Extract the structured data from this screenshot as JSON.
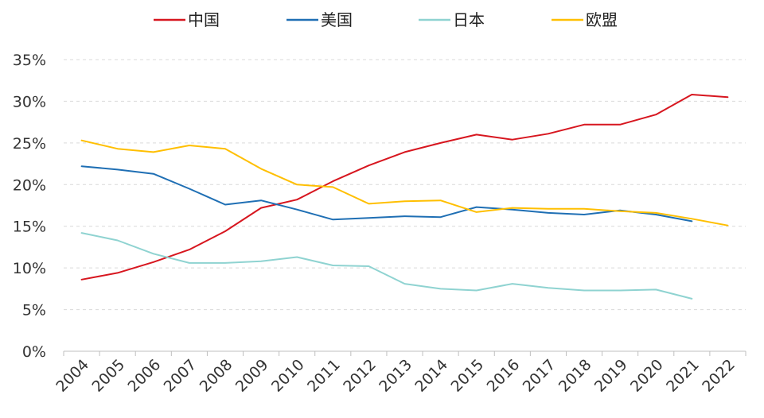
{
  "chart_data": {
    "type": "line",
    "x": [
      "2004",
      "2005",
      "2006",
      "2007",
      "2008",
      "2009",
      "2010",
      "2011",
      "2012",
      "2013",
      "2014",
      "2015",
      "2016",
      "2017",
      "2018",
      "2019",
      "2020",
      "2021",
      "2022"
    ],
    "ylim": [
      0,
      35
    ],
    "yticks": [
      "0%",
      "5%",
      "10%",
      "15%",
      "20%",
      "25%",
      "30%",
      "35%"
    ],
    "ytick_values": [
      0,
      5,
      10,
      15,
      20,
      25,
      30,
      35
    ],
    "grid": true,
    "legend_position": "top",
    "series": [
      {
        "name": "中国",
        "color": "#d7161f",
        "values": [
          8.6,
          9.4,
          10.7,
          12.2,
          14.4,
          17.2,
          18.2,
          20.4,
          22.3,
          23.9,
          25.0,
          26.0,
          25.4,
          26.1,
          27.2,
          27.2,
          28.4,
          30.8,
          30.5
        ]
      },
      {
        "name": "美国",
        "color": "#1f6fb4",
        "values": [
          22.2,
          21.8,
          21.3,
          19.5,
          17.6,
          18.1,
          17.0,
          15.8,
          16.0,
          16.2,
          16.1,
          17.3,
          17.0,
          16.6,
          16.4,
          16.9,
          16.4,
          15.6,
          null
        ]
      },
      {
        "name": "日本",
        "color": "#8fd3d1",
        "values": [
          14.2,
          13.3,
          11.7,
          10.6,
          10.6,
          10.8,
          11.3,
          10.3,
          10.2,
          8.1,
          7.5,
          7.3,
          8.1,
          7.6,
          7.3,
          7.3,
          7.4,
          6.3,
          null
        ]
      },
      {
        "name": "欧盟",
        "color": "#ffbf00",
        "values": [
          25.3,
          24.3,
          23.9,
          24.7,
          24.3,
          21.9,
          20.0,
          19.7,
          17.7,
          18.0,
          18.1,
          16.7,
          17.2,
          17.1,
          17.1,
          16.8,
          16.6,
          15.9,
          15.1
        ]
      }
    ]
  }
}
